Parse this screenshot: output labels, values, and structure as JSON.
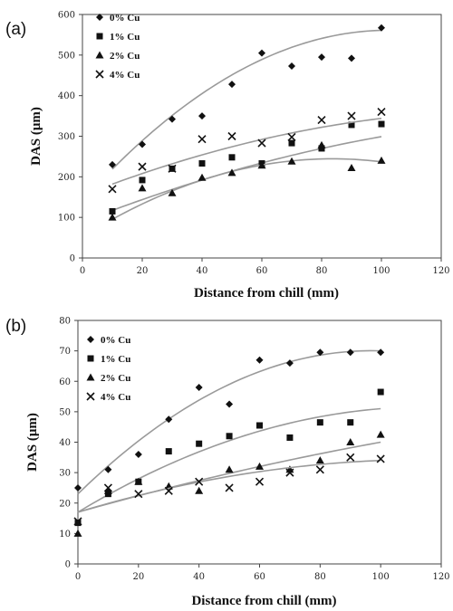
{
  "chart_data": [
    {
      "panel_label": "(a)",
      "type": "scatter",
      "xlabel": "Distance from chill (mm)",
      "ylabel": "DAS (μm)",
      "xlim": [
        0,
        120
      ],
      "ylim": [
        0,
        600
      ],
      "xticks": [
        0,
        20,
        40,
        60,
        80,
        100,
        120
      ],
      "yticks": [
        0,
        100,
        200,
        300,
        400,
        500,
        600
      ],
      "grid": false,
      "legend_position": "top-left",
      "series": [
        {
          "name": "0% Cu",
          "marker": "diamond",
          "x": [
            10,
            20,
            30,
            40,
            50,
            60,
            70,
            80,
            90,
            100
          ],
          "y": [
            230,
            280,
            342,
            350,
            428,
            505,
            473,
            495,
            492,
            567
          ],
          "fit": [
            0,
            -0.04,
            8.2,
            141
          ]
        },
        {
          "name": "1% Cu",
          "marker": "square",
          "x": [
            10,
            20,
            30,
            40,
            50,
            60,
            70,
            80,
            90,
            100
          ],
          "y": [
            115,
            192,
            220,
            233,
            248,
            233,
            283,
            270,
            328,
            330
          ],
          "fit": [
            0,
            -0.008,
            2.9,
            89
          ]
        },
        {
          "name": "2% Cu",
          "marker": "triangle",
          "x": [
            10,
            20,
            30,
            40,
            50,
            60,
            70,
            80,
            90,
            100
          ],
          "y": [
            100,
            172,
            160,
            198,
            210,
            228,
            238,
            278,
            222,
            240
          ],
          "fit": [
            0,
            -0.0275,
            4.6,
            52
          ]
        },
        {
          "name": "4% Cu",
          "marker": "x",
          "x": [
            10,
            20,
            30,
            40,
            50,
            60,
            70,
            80,
            90,
            100
          ],
          "y": [
            170,
            225,
            220,
            293,
            300,
            283,
            298,
            340,
            350,
            360
          ],
          "fit": [
            0,
            -0.01,
            2.9,
            154
          ]
        }
      ]
    },
    {
      "panel_label": "(b)",
      "type": "scatter",
      "xlabel": "Distance from chill (mm)",
      "ylabel": "DAS (μm)",
      "xlim": [
        0,
        120
      ],
      "ylim": [
        0,
        80
      ],
      "xticks": [
        0,
        20,
        40,
        60,
        80,
        100,
        120
      ],
      "yticks": [
        0,
        10,
        20,
        30,
        40,
        50,
        60,
        70,
        80
      ],
      "grid": false,
      "legend_position": "top-left",
      "series": [
        {
          "name": "0% Cu",
          "marker": "diamond",
          "x": [
            0,
            10,
            20,
            30,
            40,
            50,
            60,
            70,
            80,
            90,
            100
          ],
          "y": [
            25,
            31,
            36,
            47.5,
            58,
            52.5,
            67,
            66,
            69.5,
            69.5,
            69.5
          ],
          "fit": [
            0,
            -0.005,
            0.97,
            23
          ]
        },
        {
          "name": "1% Cu",
          "marker": "square",
          "x": [
            0,
            10,
            20,
            30,
            40,
            50,
            60,
            70,
            80,
            90,
            100
          ],
          "y": [
            13.5,
            23,
            27,
            37,
            39.5,
            42,
            45.5,
            41.5,
            46.5,
            46.5,
            56.5
          ],
          "fit": [
            0,
            -0.0026,
            0.6,
            17
          ]
        },
        {
          "name": "2% Cu",
          "marker": "triangle",
          "x": [
            0,
            10,
            20,
            30,
            40,
            50,
            60,
            70,
            80,
            90,
            100
          ],
          "y": [
            10,
            24,
            27,
            25.5,
            24,
            31,
            32,
            31,
            34,
            40,
            42.5
          ],
          "fit": [
            0,
            -0.0005,
            0.28,
            17
          ]
        },
        {
          "name": "4% Cu",
          "marker": "x",
          "x": [
            0,
            10,
            20,
            30,
            40,
            50,
            60,
            70,
            80,
            90,
            100
          ],
          "y": [
            14,
            25,
            23,
            24,
            27,
            25,
            27,
            30,
            31,
            35,
            34.5
          ],
          "fit": [
            0,
            -0.0013,
            0.3,
            17
          ]
        }
      ]
    }
  ]
}
